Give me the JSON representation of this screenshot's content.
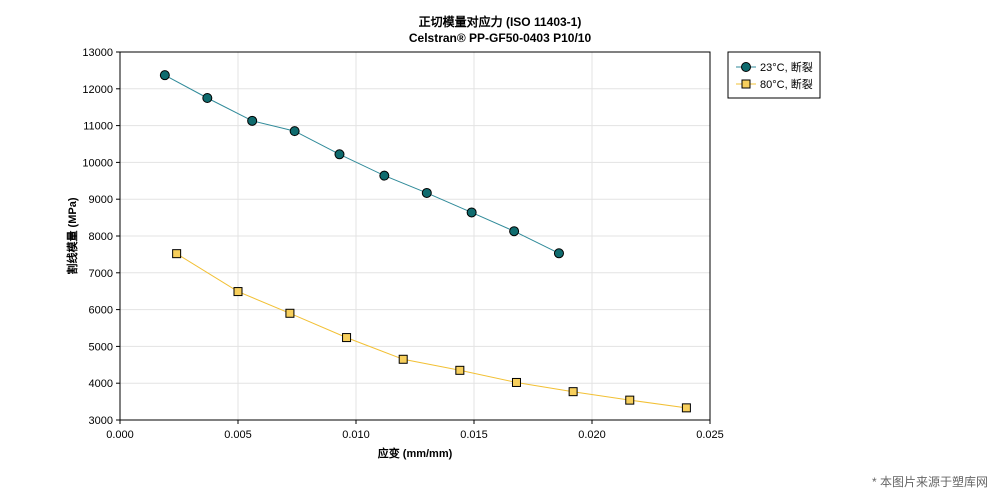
{
  "chart_data": {
    "type": "line",
    "title": "正切模量对应力 (ISO 11403-1)",
    "subtitle": "Celstran® PP-GF50-0403 P10/10",
    "xlabel": "应变 (mm/mm)",
    "ylabel": "割线模量 (MPa)",
    "xlim": [
      0.0,
      0.025
    ],
    "ylim": [
      3000,
      13000
    ],
    "xticks": [
      "0.000",
      "0.005",
      "0.010",
      "0.015",
      "0.020",
      "0.025"
    ],
    "yticks": [
      "3000",
      "4000",
      "5000",
      "6000",
      "7000",
      "8000",
      "9000",
      "10000",
      "11000",
      "12000",
      "13000"
    ],
    "grid": true,
    "legend_position": "top-right outside",
    "series": [
      {
        "name": "23°C, 断裂",
        "marker": "circle",
        "line_color": "#2f8a99",
        "marker_color": "#0f6b6e",
        "x": [
          0.0019,
          0.0037,
          0.0056,
          0.0074,
          0.0093,
          0.0112,
          0.013,
          0.0149,
          0.0167,
          0.0186
        ],
        "y": [
          12370,
          11750,
          11130,
          10850,
          10220,
          9640,
          9170,
          8640,
          8130,
          7530
        ]
      },
      {
        "name": "80°C, 断裂",
        "marker": "square",
        "line_color": "#f2c034",
        "marker_color": "#f7cf5c",
        "x": [
          0.0024,
          0.005,
          0.0072,
          0.0096,
          0.012,
          0.0144,
          0.0168,
          0.0192,
          0.0216,
          0.024
        ],
        "y": [
          7520,
          6490,
          5900,
          5240,
          4650,
          4350,
          4020,
          3770,
          3540,
          3330
        ]
      }
    ]
  },
  "watermark": "* 本图片来源于塑库网"
}
